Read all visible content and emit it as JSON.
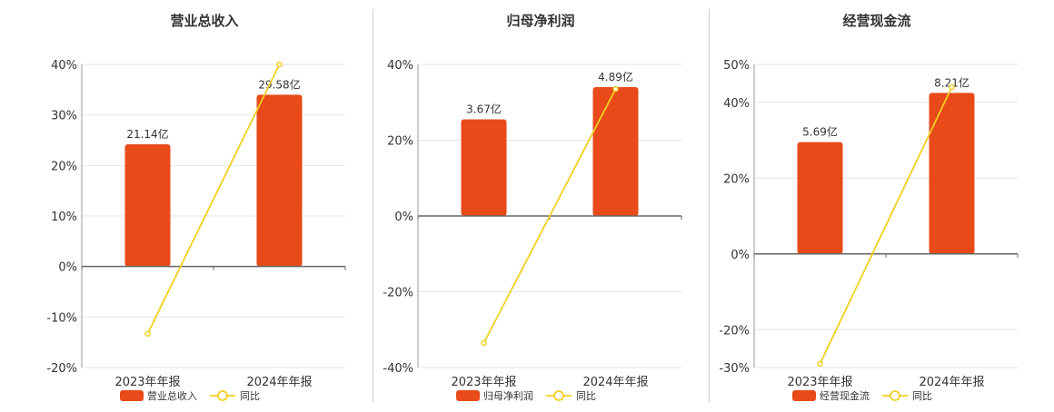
{
  "colors": {
    "bar": "#e84a19",
    "line": "#f0d020",
    "axis": "#666666",
    "grid": "#e6e6e6",
    "text": "#333333"
  },
  "chart_data": [
    {
      "type": "bar",
      "title": "营业总收入",
      "categories": [
        "2023年年报",
        "2024年年报"
      ],
      "ylim": [
        -20,
        40
      ],
      "yticks": [
        -20,
        -10,
        0,
        10,
        20,
        30,
        40
      ],
      "ytick_labels": [
        "-20%",
        "-10%",
        "0%",
        "10%",
        "20%",
        "30%",
        "40%"
      ],
      "series": [
        {
          "name": "营业总收入",
          "kind": "bar",
          "values": [
            24.2,
            34.0
          ],
          "labels": [
            "21.14亿",
            "29.58亿"
          ]
        },
        {
          "name": "同比",
          "kind": "line",
          "values": [
            -13.3,
            40.0
          ]
        }
      ],
      "grid": true,
      "legend": "bottom"
    },
    {
      "type": "bar",
      "title": "归母净利润",
      "categories": [
        "2023年年报",
        "2024年年报"
      ],
      "ylim": [
        -40,
        40
      ],
      "yticks": [
        -40,
        -20,
        0,
        20,
        40
      ],
      "ytick_labels": [
        "-40%",
        "-20%",
        "0%",
        "20%",
        "40%"
      ],
      "series": [
        {
          "name": "归母净利润",
          "kind": "bar",
          "values": [
            25.5,
            34.0
          ],
          "labels": [
            "3.67亿",
            "4.89亿"
          ]
        },
        {
          "name": "同比",
          "kind": "line",
          "values": [
            -33.5,
            33.5
          ]
        }
      ],
      "grid": true,
      "legend": "bottom"
    },
    {
      "type": "bar",
      "title": "经营现金流",
      "categories": [
        "2023年年报",
        "2024年年报"
      ],
      "ylim": [
        -30,
        50
      ],
      "yticks": [
        -30,
        -20,
        0,
        20,
        40,
        50
      ],
      "ytick_labels": [
        "-30%",
        "-20%",
        "0%",
        "20%",
        "40%",
        "50%"
      ],
      "series": [
        {
          "name": "经营现金流",
          "kind": "bar",
          "values": [
            29.5,
            42.5
          ],
          "labels": [
            "5.69亿",
            "8.21亿"
          ]
        },
        {
          "name": "同比",
          "kind": "line",
          "values": [
            -29.0,
            44.0
          ]
        }
      ],
      "grid": true,
      "legend": "bottom"
    }
  ]
}
